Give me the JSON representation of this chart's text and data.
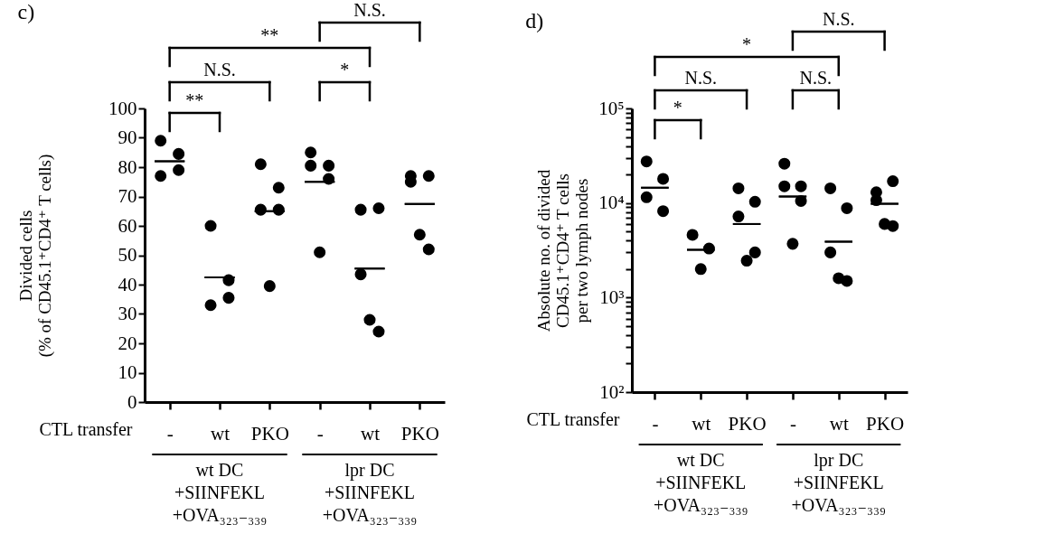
{
  "chart_data": [
    {
      "type": "scatter",
      "title": "c)",
      "xlabel": "CTL transfer",
      "ylabel": "Divided cells\n(% of CD45.1⁺CD4⁺ T cells)",
      "categories": [
        "-",
        "wt",
        "PKO",
        "-",
        "wt",
        "PKO"
      ],
      "series": [
        {
          "marker": "circle",
          "color": "#000000",
          "values": [
            89,
            60,
            81,
            85,
            65.5,
            77
          ]
        },
        {
          "marker": "circle",
          "color": "#000000",
          "values": [
            84.5,
            41.5,
            73,
            80.5,
            66,
            77
          ]
        },
        {
          "marker": "circle",
          "color": "#000000",
          "values": [
            77,
            33,
            65.5,
            80.5,
            43.5,
            75
          ]
        },
        {
          "marker": "circle",
          "color": "#000000",
          "values": [
            79,
            35.5,
            65.5,
            76,
            24,
            52
          ]
        },
        {
          "marker": "circle",
          "color": "#000000",
          "values": [
            null,
            null,
            39.5,
            51,
            28,
            57
          ]
        },
        {
          "type": "box",
          "color": "#000000",
          "boxes": [
            {
              "low": 82,
              "q1": 82,
              "median": 82,
              "q3": 82,
              "high": 82
            },
            {
              "low": 42.5,
              "q1": 42.5,
              "median": 42.5,
              "q3": 42.5,
              "high": 42.5
            },
            {
              "low": 65,
              "q1": 65,
              "median": 65,
              "q3": 65,
              "high": 65
            },
            {
              "low": 75,
              "q1": 75,
              "median": 75,
              "q3": 75,
              "high": 75
            },
            {
              "low": 45.5,
              "q1": 45.5,
              "median": 45.5,
              "q3": 45.5,
              "high": 45.5
            },
            {
              "low": 67.5,
              "q1": 67.5,
              "median": 67.5,
              "q3": 67.5,
              "high": 67.5
            }
          ]
        }
      ],
      "ylim": [
        0,
        100
      ],
      "yticks": [
        0,
        10,
        20,
        30,
        40,
        50,
        60,
        70,
        80,
        90,
        100
      ],
      "grid": false,
      "annotations": [
        "**",
        "N.S.",
        "*",
        "**",
        "N.S.",
        "wt DC\n+SIINFEKL\n+OVA₃₂₃₋₃₃₉",
        "lpr DC\n+SIINFEKL\n+OVA₃₂₃₋₃₃₉"
      ]
    },
    {
      "type": "scatter",
      "title": "d)",
      "xlabel": "CTL transfer",
      "ylabel": "Absolute no. of divided\nCD45.1⁺CD4⁺ T cells\nper two lymph nodes",
      "categories": [
        "-",
        "wt",
        "PKO",
        "-",
        "wt",
        "PKO"
      ],
      "series": [
        {
          "marker": "circle",
          "color": "#000000",
          "values": [
            27500,
            4600,
            14300,
            26000,
            14300,
            13000
          ]
        },
        {
          "marker": "circle",
          "color": "#000000",
          "values": [
            18000,
            3300,
            10300,
            15000,
            8800,
            17000
          ]
        },
        {
          "marker": "circle",
          "color": "#000000",
          "values": [
            11500,
            2000,
            7200,
            15000,
            3000,
            10700
          ]
        },
        {
          "marker": "circle",
          "color": "#000000",
          "values": [
            8200,
            null,
            3000,
            10500,
            1500,
            5700
          ]
        },
        {
          "marker": "circle",
          "color": "#000000",
          "values": [
            null,
            null,
            2450,
            3700,
            1600,
            6000
          ]
        },
        {
          "type": "box",
          "color": "#000000",
          "boxes": [
            {
              "low": 14500,
              "q1": 14500,
              "median": 14500,
              "q3": 14500,
              "high": 14500
            },
            {
              "low": 3200,
              "q1": 3200,
              "median": 3200,
              "q3": 3200,
              "high": 3200
            },
            {
              "low": 6000,
              "q1": 6000,
              "median": 6000,
              "q3": 6000,
              "high": 6000
            },
            {
              "low": 11700,
              "q1": 11700,
              "median": 11700,
              "q3": 11700,
              "high": 11700
            },
            {
              "low": 3900,
              "q1": 3900,
              "median": 3900,
              "q3": 3900,
              "high": 3900
            },
            {
              "low": 9800,
              "q1": 9800,
              "median": 9800,
              "q3": 9800,
              "high": 9800
            }
          ]
        }
      ],
      "log": true,
      "ylim": [
        100,
        100000
      ],
      "yticks": [
        {
          "value": 100,
          "label": "10²"
        },
        {
          "value": 200,
          "label": null
        },
        {
          "value": 300,
          "label": null
        },
        {
          "value": 400,
          "label": null
        },
        {
          "value": 500,
          "label": null
        },
        {
          "value": 600,
          "label": null
        },
        {
          "value": 700,
          "label": null
        },
        {
          "value": 800,
          "label": null
        },
        {
          "value": 900,
          "label": null
        },
        {
          "value": 1000,
          "label": "10³"
        },
        {
          "value": 2000,
          "label": null
        },
        {
          "value": 3000,
          "label": null
        },
        {
          "value": 4000,
          "label": null
        },
        {
          "value": 5000,
          "label": null
        },
        {
          "value": 6000,
          "label": null
        },
        {
          "value": 7000,
          "label": null
        },
        {
          "value": 8000,
          "label": null
        },
        {
          "value": 9000,
          "label": null
        },
        {
          "value": 10000,
          "label": "10⁴"
        },
        {
          "value": 20000,
          "label": null
        },
        {
          "value": 30000,
          "label": null
        },
        {
          "value": 40000,
          "label": null
        },
        {
          "value": 50000,
          "label": null
        },
        {
          "value": 60000,
          "label": null
        },
        {
          "value": 70000,
          "label": null
        },
        {
          "value": 80000,
          "label": null
        },
        {
          "value": 90000,
          "label": null
        },
        {
          "value": 100000,
          "label": "10⁵"
        }
      ],
      "grid": false,
      "annotations": [
        "*",
        "N.S.",
        "N.S.",
        "*",
        "N.S.",
        "wt DC\n+SIINFEKL\n+OVA₃₂₃₋₃₃₉",
        "lpr DC\n+SIINFEKL\n+OVA₃₂₃₋₃₃₉"
      ]
    }
  ]
}
